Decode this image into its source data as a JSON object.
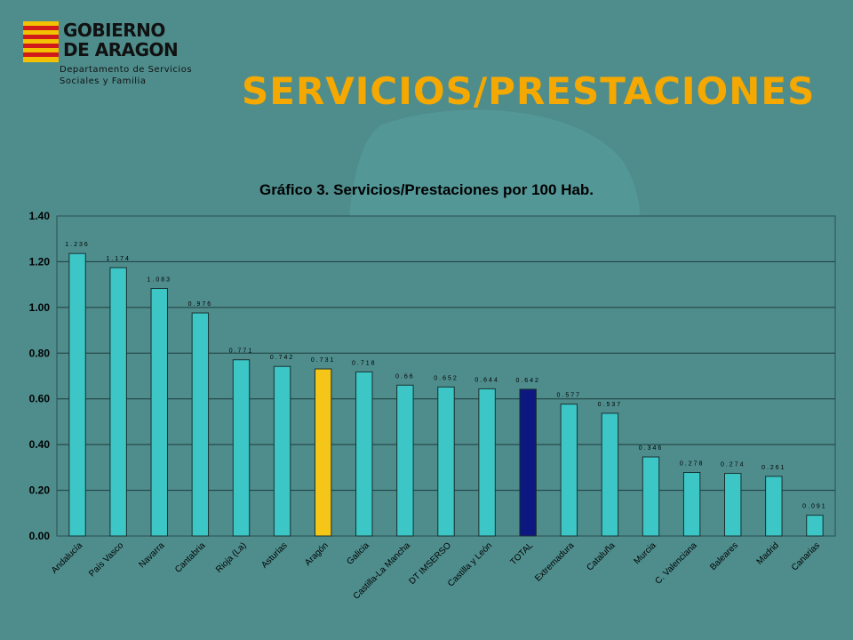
{
  "logo": {
    "line1": "GOBIERNO",
    "line2": "DE ARAGON",
    "dept_line1": "Departamento de Servicios",
    "dept_line2": "Sociales y Familia"
  },
  "page_title": "SERVICIOS/PRESTACIONES",
  "colors": {
    "background": "#4f8d8d",
    "title": "#f5a800",
    "bar_default": "#3cc6c6",
    "bar_aragon": "#f5c518",
    "bar_total": "#0d1780"
  },
  "chart_data": {
    "type": "bar",
    "title": "Gráfico 3. Servicios/Prestaciones por 100 Hab.",
    "xlabel": "",
    "ylabel": "",
    "ylim": [
      0,
      1.4
    ],
    "yticks": [
      "0.00",
      "0.20",
      "0.40",
      "0.60",
      "0.80",
      "1.00",
      "1.20",
      "1.40"
    ],
    "grid": true,
    "categories": [
      "Andalucía",
      "País Vasco",
      "Navarra",
      "Cantabria",
      "Rioja (La)",
      "Asturias",
      "Aragón",
      "Galicia",
      "Castilla-La Mancha",
      "DT IMSERSO",
      "Castilla y León",
      "TOTAL",
      "Extremadura",
      "Cataluña",
      "Murcia",
      "C. Valenciana",
      "Baleares",
      "Madrid",
      "Canarias"
    ],
    "values": [
      1.236,
      1.174,
      1.083,
      0.976,
      0.771,
      0.742,
      0.731,
      0.718,
      0.66,
      0.652,
      0.644,
      0.642,
      0.577,
      0.537,
      0.346,
      0.278,
      0.274,
      0.261,
      0.091
    ],
    "data_labels": [
      "1.236",
      "1.174",
      "1.083",
      "0.976",
      "0.771",
      "0.742",
      "0.731",
      "0.718",
      "0.66",
      "0.652",
      "0.644",
      "0.642",
      "0.577",
      "0.537",
      "0.346",
      "0.278",
      "0.274",
      "0.261",
      "0.091"
    ]
  }
}
